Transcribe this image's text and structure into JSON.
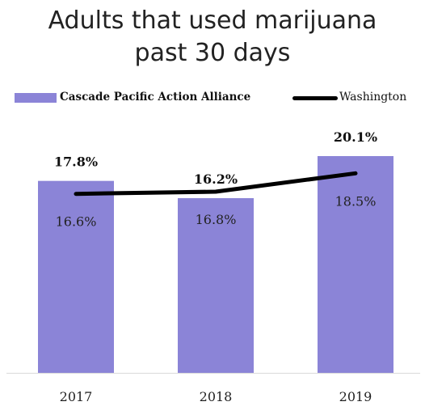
{
  "chart_data": {
    "type": "bar",
    "title_lines": [
      "Adults that used marijuana",
      "past 30 days"
    ],
    "categories": [
      "2017",
      "2018",
      "2019"
    ],
    "series": [
      {
        "name": "Cascade Pacific Action Alliance",
        "kind": "bar",
        "values": [
          17.8,
          16.2,
          20.1
        ],
        "labels": [
          "17.8%",
          "16.2%",
          "20.1%"
        ],
        "color": "#8B84D7"
      },
      {
        "name": "Washington",
        "kind": "line",
        "values": [
          16.6,
          16.8,
          18.5
        ],
        "labels": [
          "16.6%",
          "16.8%",
          "18.5%"
        ],
        "color": "#000000"
      }
    ],
    "ylim": [
      0,
      24
    ],
    "grid": false,
    "legend": "top"
  }
}
